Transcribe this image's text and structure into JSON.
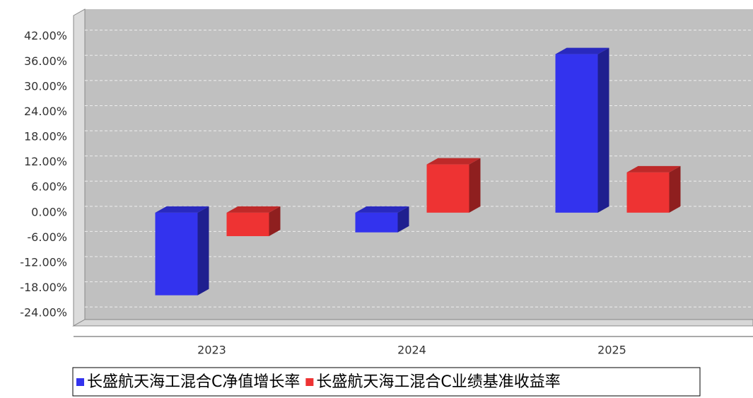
{
  "chart_data": {
    "type": "bar3d",
    "categories": [
      "2023",
      "2024",
      "2025"
    ],
    "series": [
      {
        "name": "长盛航天海工混合C净值增长率",
        "color": "#3333ee",
        "values": [
          -19.7,
          -4.7,
          37.8
        ]
      },
      {
        "name": "长盛航天海工混合C业绩基准收益率",
        "color": "#ee3333",
        "values": [
          -5.6,
          11.5,
          9.6
        ]
      }
    ],
    "ylim": [
      -27,
      47
    ],
    "yticks": [
      {
        "value": -24,
        "label": "-24.00%"
      },
      {
        "value": -18,
        "label": "-18.00%"
      },
      {
        "value": -12,
        "label": "-12.00%"
      },
      {
        "value": -6,
        "label": "-6.00%"
      },
      {
        "value": 0,
        "label": "0.00%"
      },
      {
        "value": 6,
        "label": "6.00%"
      },
      {
        "value": 12,
        "label": "12.00%"
      },
      {
        "value": 18,
        "label": "18.00%"
      },
      {
        "value": 24,
        "label": "24.00%"
      },
      {
        "value": 30,
        "label": "30.00%"
      },
      {
        "value": 36,
        "label": "36.00%"
      },
      {
        "value": 42,
        "label": "42.00%"
      }
    ],
    "grid": true
  }
}
